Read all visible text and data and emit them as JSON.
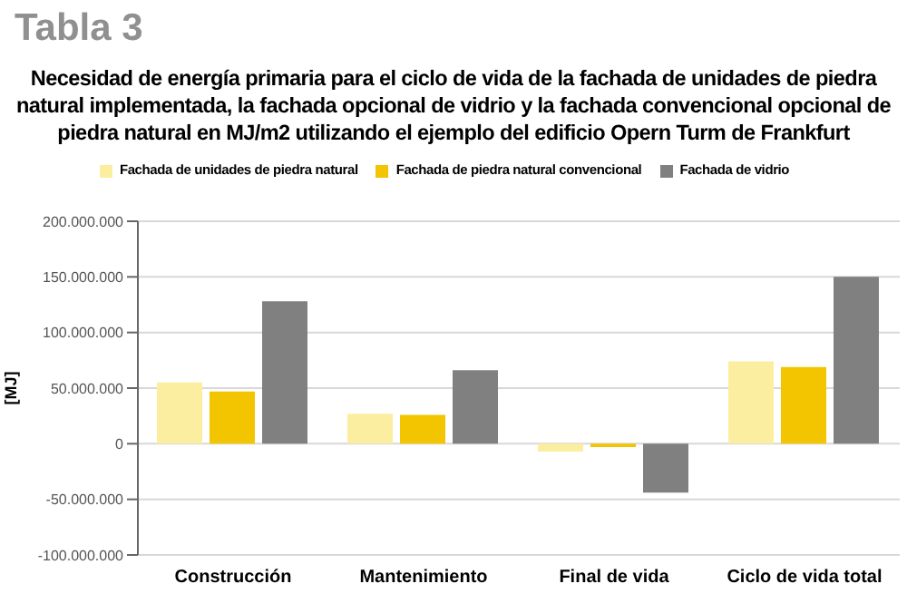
{
  "chart_data": {
    "type": "bar",
    "title": "Necesidad de energía primaria para el ciclo de vida de la fachada de unidades de piedra natural implementada, la fachada opcional de vidrio y la fachada convencional opcional de piedra natural en MJ/m2 utilizando el ejemplo del edificio Opern Turm de Frankfurt",
    "annotations": [
      "Tabla 3"
    ],
    "ylabel": "[MJ]",
    "categories": [
      "Construcción",
      "Mantenimiento",
      "Final de vida",
      "Ciclo de vida total"
    ],
    "series": [
      {
        "name": "Fachada de unidades de piedra natural",
        "color": "#fbeea0",
        "values": [
          55000000,
          27000000,
          -7000000,
          74000000
        ]
      },
      {
        "name": "Fachada de piedra natural convencional",
        "color": "#f2c500",
        "values": [
          47000000,
          26000000,
          -3000000,
          69000000
        ]
      },
      {
        "name": "Fachada de vidrio",
        "color": "#808080",
        "values": [
          128000000,
          66000000,
          -44000000,
          150000000
        ]
      }
    ],
    "ylim": [
      -100000000,
      200000000
    ],
    "yticks": [
      {
        "value": -100000000,
        "label": "-100.000.000"
      },
      {
        "value": -50000000,
        "label": "-50.000.000"
      },
      {
        "value": 0,
        "label": "0"
      },
      {
        "value": 50000000,
        "label": "50.000.000"
      },
      {
        "value": 100000000,
        "label": "100.000.000"
      },
      {
        "value": 150000000,
        "label": "150.000.000"
      },
      {
        "value": 200000000,
        "label": "200.000.000"
      }
    ],
    "grid": "y",
    "legend": "top"
  }
}
